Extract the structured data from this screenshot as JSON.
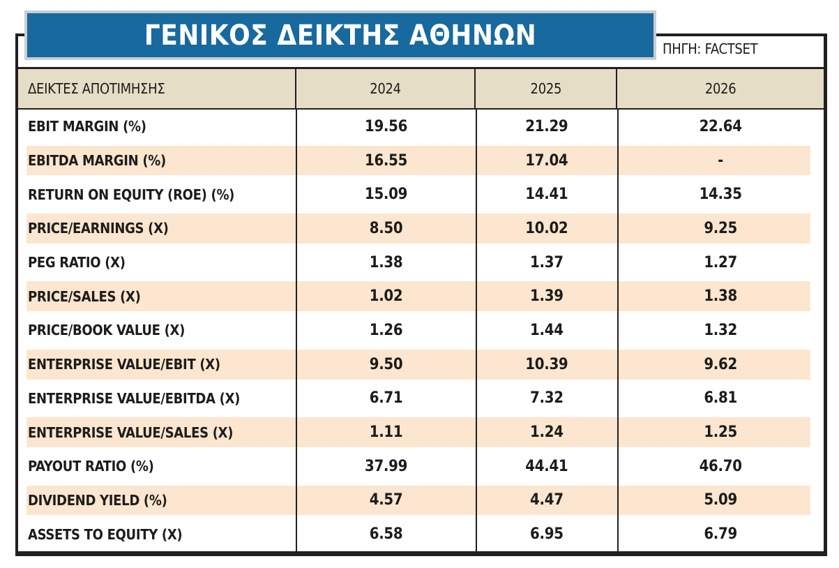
{
  "colors": {
    "accent_blue": "#17699e",
    "banner_frame_gray": "#c9cdd0",
    "border_black": "#231f20",
    "header_beige": "#e6ddc7",
    "stripe_orange": "#fce6cf",
    "text_black": "#1d1c1a",
    "page_white": "#ffffff"
  },
  "chart_data": {
    "type": "table",
    "title": "ΓΕΝΙΚΟΣ ΔΕΙΚΤΗΣ ΑΘΗΝΩΝ",
    "source": "ΠΗΓΗ: FACTSET",
    "columns": [
      "ΔΕΙΚΤΕΣ ΑΠΟΤΙΜΗΣΗΣ",
      "2024",
      "2025",
      "2026"
    ],
    "rows": [
      {
        "label": "EBIT MARGIN (%)",
        "values": [
          "19.56",
          "21.29",
          "22.64"
        ]
      },
      {
        "label": "EBITDA MARGIN (%)",
        "values": [
          "16.55",
          "17.04",
          "-"
        ]
      },
      {
        "label": "RETURN ON EQUITY (ROE) (%)",
        "values": [
          "15.09",
          "14.41",
          "14.35"
        ]
      },
      {
        "label": "PRICE/EARNINGS (X)",
        "values": [
          "8.50",
          "10.02",
          "9.25"
        ]
      },
      {
        "label": "PEG RATIO (X)",
        "values": [
          "1.38",
          "1.37",
          "1.27"
        ]
      },
      {
        "label": "PRICE/SALES (X)",
        "values": [
          "1.02",
          "1.39",
          "1.38"
        ]
      },
      {
        "label": "PRICE/BOOK VALUE (X)",
        "values": [
          "1.26",
          "1.44",
          "1.32"
        ]
      },
      {
        "label": "ENTERPRISE VALUE/EBIT (X)",
        "values": [
          "9.50",
          "10.39",
          "9.62"
        ]
      },
      {
        "label": "ENTERPRISE VALUE/EBITDA (X)",
        "values": [
          "6.71",
          "7.32",
          "6.81"
        ]
      },
      {
        "label": "ENTERPRISE VALUE/SALES (X)",
        "values": [
          "1.11",
          "1.24",
          "1.25"
        ]
      },
      {
        "label": "PAYOUT RATIO (%)",
        "values": [
          "37.99",
          "44.41",
          "46.70"
        ]
      },
      {
        "label": "DIVIDEND YIELD (%)",
        "values": [
          "4.57",
          "4.47",
          "5.09"
        ]
      },
      {
        "label": "ASSETS TO EQUITY (X)",
        "values": [
          "6.58",
          "6.95",
          "6.79"
        ]
      }
    ],
    "layout": {
      "striped_rows": "even rows highlighted",
      "value_alignment": "center",
      "label_alignment": "left"
    }
  }
}
